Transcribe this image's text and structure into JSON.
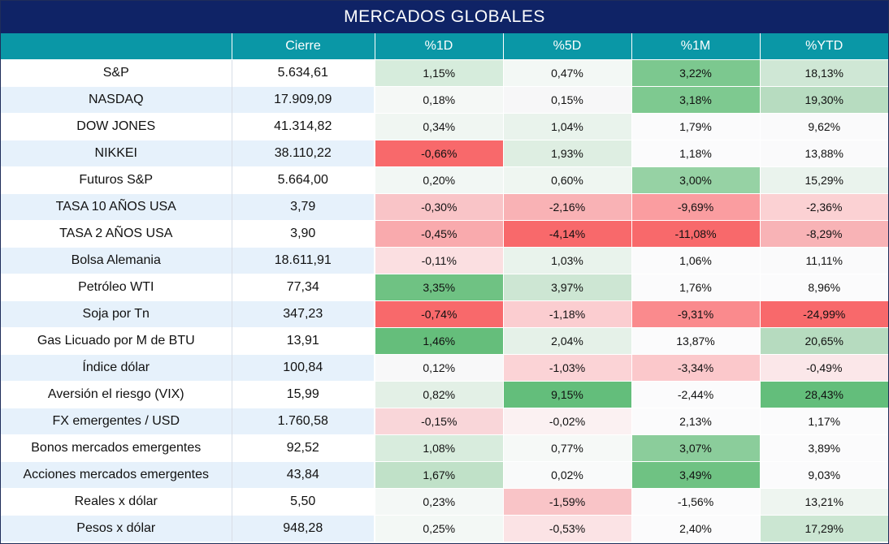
{
  "title": "MERCADOS GLOBALES",
  "columns": [
    "",
    "Cierre",
    "%1D",
    "%5D",
    "%1M",
    "%YTD"
  ],
  "rows": [
    {
      "name": "S&P",
      "close": "5.634,61",
      "d1": "1,15%",
      "d5": "0,47%",
      "m1": "3,22%",
      "ytd": "18,13%"
    },
    {
      "name": "NASDAQ",
      "close": "17.909,09",
      "d1": "0,18%",
      "d5": "0,15%",
      "m1": "3,18%",
      "ytd": "19,30%"
    },
    {
      "name": "DOW JONES",
      "close": "41.314,82",
      "d1": "0,34%",
      "d5": "1,04%",
      "m1": "1,79%",
      "ytd": "9,62%"
    },
    {
      "name": "NIKKEI",
      "close": "38.110,22",
      "d1": "-0,66%",
      "d5": "1,93%",
      "m1": "1,18%",
      "ytd": "13,88%"
    },
    {
      "name": "Futuros S&P",
      "close": "5.664,00",
      "d1": "0,20%",
      "d5": "0,60%",
      "m1": "3,00%",
      "ytd": "15,29%"
    },
    {
      "name": "TASA 10 AÑOS USA",
      "close": "3,79",
      "d1": "-0,30%",
      "d5": "-2,16%",
      "m1": "-9,69%",
      "ytd": "-2,36%"
    },
    {
      "name": "TASA 2 AÑOS USA",
      "close": "3,90",
      "d1": "-0,45%",
      "d5": "-4,14%",
      "m1": "-11,08%",
      "ytd": "-8,29%"
    },
    {
      "name": "Bolsa Alemania",
      "close": "18.611,91",
      "d1": "-0,11%",
      "d5": "1,03%",
      "m1": "1,06%",
      "ytd": "11,11%"
    },
    {
      "name": "Petróleo WTI",
      "close": "77,34",
      "d1": "3,35%",
      "d5": "3,97%",
      "m1": "1,76%",
      "ytd": "8,96%"
    },
    {
      "name": "Soja por Tn",
      "close": "347,23",
      "d1": "-0,74%",
      "d5": "-1,18%",
      "m1": "-9,31%",
      "ytd": "-24,99%"
    },
    {
      "name": "Gas Licuado por M de BTU",
      "close": "13,91",
      "d1": "1,46%",
      "d5": "2,04%",
      "m1": "13,87%",
      "ytd": "20,65%"
    },
    {
      "name": "Índice dólar",
      "close": "100,84",
      "d1": "0,12%",
      "d5": "-1,03%",
      "m1": "-3,34%",
      "ytd": "-0,49%"
    },
    {
      "name": "Aversión el riesgo (VIX)",
      "close": "15,99",
      "d1": "0,82%",
      "d5": "9,15%",
      "m1": "-2,44%",
      "ytd": "28,43%"
    },
    {
      "name": "FX emergentes / USD",
      "close": "1.760,58",
      "d1": "-0,15%",
      "d5": "-0,02%",
      "m1": "2,13%",
      "ytd": "1,17%"
    },
    {
      "name": "Bonos mercados emergentes",
      "close": "92,52",
      "d1": "1,08%",
      "d5": "0,77%",
      "m1": "3,07%",
      "ytd": "3,89%"
    },
    {
      "name": "Acciones mercados emergentes",
      "close": "43,84",
      "d1": "1,67%",
      "d5": "0,02%",
      "m1": "3,49%",
      "ytd": "9,03%"
    },
    {
      "name": "Reales x dólar",
      "close": "5,50",
      "d1": "0,23%",
      "d5": "-1,59%",
      "m1": "-1,56%",
      "ytd": "13,21%"
    },
    {
      "name": "Pesos x dólar",
      "close": "948,28",
      "d1": "0,25%",
      "d5": "-0,53%",
      "m1": "2,40%",
      "ytd": "17,29%"
    }
  ],
  "cell_colors": [
    [
      "#d6ecdc",
      "#f3f8f5",
      "#7cc88f",
      "#cfe7d5"
    ],
    [
      "#f5f8f6",
      "#f7f7f8",
      "#7ec990",
      "#b7dcc0"
    ],
    [
      "#f0f6f2",
      "#e9f3ec",
      "#fbfbfc",
      "#fafafb"
    ],
    [
      "#f8696b",
      "#deeee2",
      "#fbfbfc",
      "#fafafb"
    ],
    [
      "#f2f7f4",
      "#eff6f1",
      "#96d2a4",
      "#eaf3ed"
    ],
    [
      "#f9c4c7",
      "#f9b2b5",
      "#fa9da0",
      "#fbd1d3"
    ],
    [
      "#f9aaad",
      "#f8696b",
      "#f8696b",
      "#f8b3b6"
    ],
    [
      "#fbdfe1",
      "#e9f3ec",
      "#fbfbfc",
      "#fafafb"
    ],
    [
      "#6fc283",
      "#cde6d3",
      "#fbfbfc",
      "#fbfbfc"
    ],
    [
      "#f8696b",
      "#fbcdd0",
      "#fa8a8d",
      "#f8696b"
    ],
    [
      "#65be7b",
      "#e5f1e8",
      "#fbfbfc",
      "#b6dbbf"
    ],
    [
      "#f8f8f9",
      "#fbd3d6",
      "#fbc8cb",
      "#fbe7e9"
    ],
    [
      "#e3f0e6",
      "#63be7b",
      "#fbfbfc",
      "#63be7b"
    ],
    [
      "#f9d6d9",
      "#fbf1f2",
      "#fbfbfc",
      "#fbfbfc"
    ],
    [
      "#d8ecdd",
      "#f6f9f7",
      "#8bcd9b",
      "#fbfbfc"
    ],
    [
      "#c0e1c8",
      "#f9fafa",
      "#6fc283",
      "#fbfbfc"
    ],
    [
      "#f4f8f6",
      "#f9c4c7",
      "#fbfbfc",
      "#eef5f0"
    ],
    [
      "#f3f8f5",
      "#fbe3e5",
      "#fbfbfc",
      "#cbe6d2"
    ]
  ]
}
